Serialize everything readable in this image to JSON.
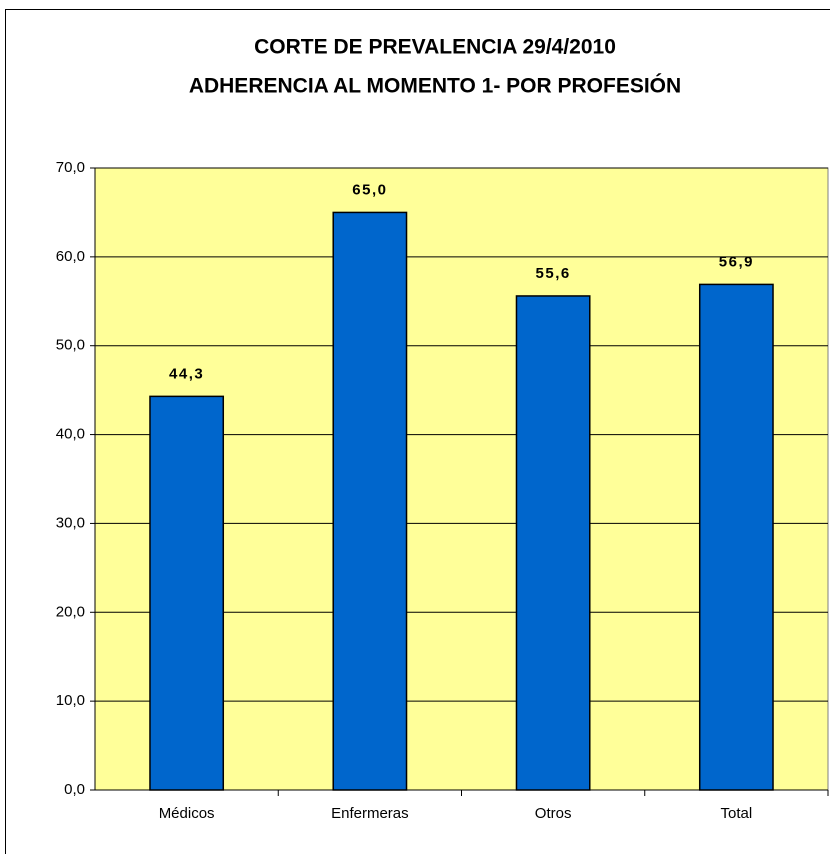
{
  "chart_data": {
    "type": "bar",
    "title": [
      "CORTE DE PREVALENCIA 29/4/2010",
      "ADHERENCIA AL MOMENTO 1- POR PROFESIÓN"
    ],
    "categories": [
      "Médicos",
      "Enfermeras",
      "Otros",
      "Total"
    ],
    "values": [
      44.3,
      65.0,
      55.6,
      56.9
    ],
    "value_labels": [
      "44,3",
      "65,0",
      "55,6",
      "56,9"
    ],
    "color": "#0066cc",
    "plot_background": "#ffff99",
    "ylim": [
      0,
      70
    ],
    "yticks": [
      {
        "value": 0,
        "label": "0,0"
      },
      {
        "value": 10,
        "label": "10,0"
      },
      {
        "value": 20,
        "label": "20,0"
      },
      {
        "value": 30,
        "label": "30,0"
      },
      {
        "value": 40,
        "label": "40,0"
      },
      {
        "value": 50,
        "label": "50,0"
      },
      {
        "value": 60,
        "label": "60,0"
      },
      {
        "value": 70,
        "label": "70,0"
      }
    ],
    "grid": true
  }
}
